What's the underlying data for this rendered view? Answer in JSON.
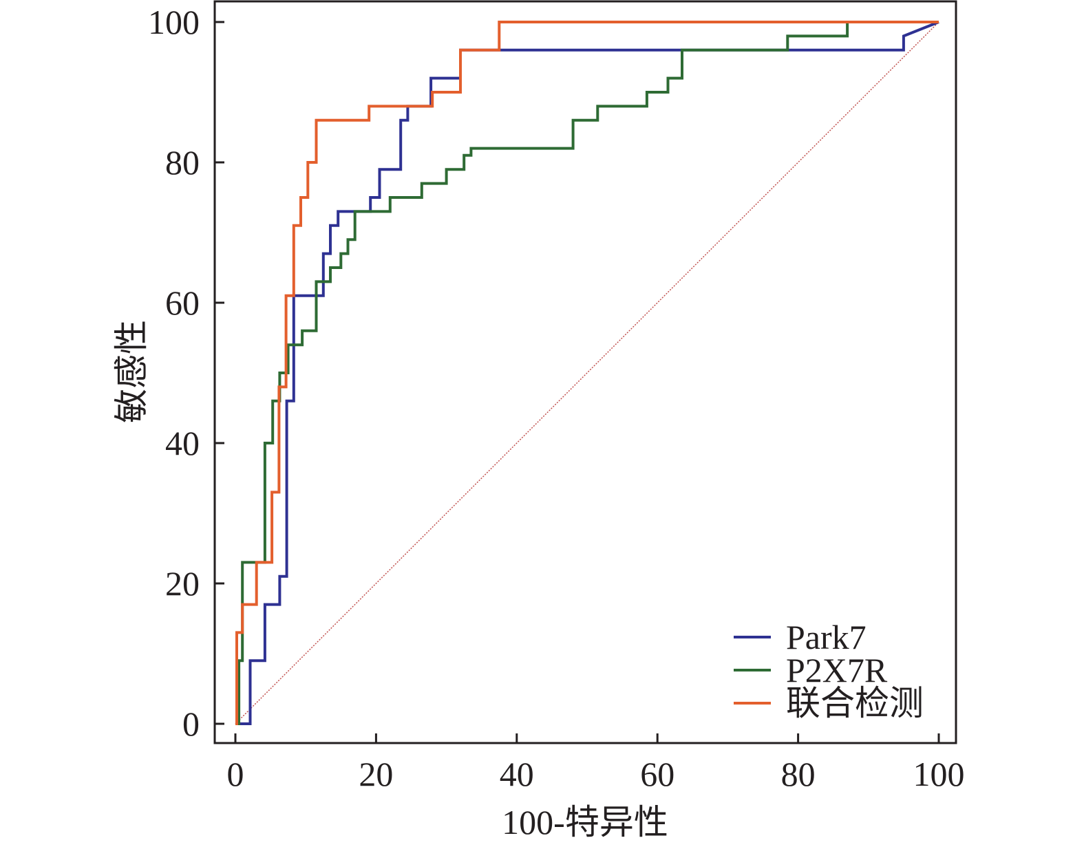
{
  "chart_data": {
    "type": "line",
    "title": "",
    "xlabel": "100-特异性",
    "ylabel": "敏感性",
    "xlim": [
      0,
      100
    ],
    "ylim": [
      0,
      100
    ],
    "grid": false,
    "legend_position": "bottom-right",
    "x_ticks": [
      "0",
      "20",
      "40",
      "60",
      "80",
      "100"
    ],
    "y_ticks": [
      "0",
      "20",
      "40",
      "60",
      "80",
      "100"
    ],
    "colors": {
      "Park7": "#2e3192",
      "P2X7R": "#2e6b34",
      "联合检测": "#e35f2d",
      "reference": "#c0504d",
      "axes": "#231f20"
    },
    "series": [
      {
        "name": "Park7",
        "x": [
          0,
          2.1,
          2.1,
          4.2,
          4.2,
          6.3,
          6.3,
          7.3,
          7.3,
          8.3,
          8.3,
          12.5,
          12.5,
          13.5,
          13.5,
          14.6,
          14.6,
          19.2,
          19.2,
          20.5,
          20.5,
          23.5,
          23.5,
          24.5,
          24.5,
          27.8,
          27.8,
          32.0,
          32.0,
          95.0,
          95.0,
          100
        ],
        "y": [
          0,
          0,
          9,
          9,
          17,
          17,
          21,
          21,
          46,
          46,
          61,
          61,
          67,
          67,
          71,
          71,
          73,
          73,
          75,
          75,
          79,
          79,
          86,
          86,
          88,
          88,
          92,
          92,
          96,
          96,
          98,
          100
        ]
      },
      {
        "name": "P2X7R",
        "x": [
          0,
          0.5,
          0.5,
          1.0,
          1.0,
          4.2,
          4.2,
          5.3,
          5.3,
          6.3,
          6.3,
          7.5,
          7.5,
          9.5,
          9.5,
          11.5,
          11.5,
          13.5,
          13.5,
          15.0,
          15.0,
          16.0,
          16.0,
          17.0,
          17.0,
          22.0,
          22.0,
          26.5,
          26.5,
          30.0,
          30.0,
          32.5,
          32.5,
          33.5,
          33.5,
          48.0,
          48.0,
          51.5,
          51.5,
          58.5,
          58.5,
          61.5,
          61.5,
          63.5,
          63.5,
          78.5,
          78.5,
          87.0,
          87.0,
          100
        ],
        "y": [
          0,
          0,
          9,
          9,
          23,
          23,
          40,
          40,
          46,
          46,
          50,
          50,
          54,
          54,
          56,
          56,
          63,
          63,
          65,
          65,
          67,
          67,
          69,
          69,
          73,
          73,
          75,
          75,
          77,
          77,
          79,
          79,
          81,
          81,
          82,
          82,
          86,
          86,
          88,
          88,
          90,
          90,
          92,
          92,
          96,
          96,
          98,
          98,
          100,
          100
        ]
      },
      {
        "name": "联合检测",
        "x": [
          0,
          0.2,
          0.2,
          1.0,
          1.0,
          3.0,
          3.0,
          5.2,
          5.2,
          6.2,
          6.2,
          7.2,
          7.2,
          8.3,
          8.3,
          9.3,
          9.3,
          10.3,
          10.3,
          11.5,
          11.5,
          19.0,
          19.0,
          28.0,
          28.0,
          32.0,
          32.0,
          37.5,
          37.5,
          100
        ],
        "y": [
          0,
          0,
          13,
          13,
          17,
          17,
          23,
          23,
          33,
          33,
          48,
          48,
          61,
          61,
          71,
          71,
          75,
          75,
          80,
          80,
          86,
          86,
          88,
          88,
          90,
          90,
          96,
          96,
          100,
          100
        ]
      }
    ],
    "reference_line": {
      "x": [
        0,
        100
      ],
      "y": [
        0,
        100
      ]
    }
  }
}
